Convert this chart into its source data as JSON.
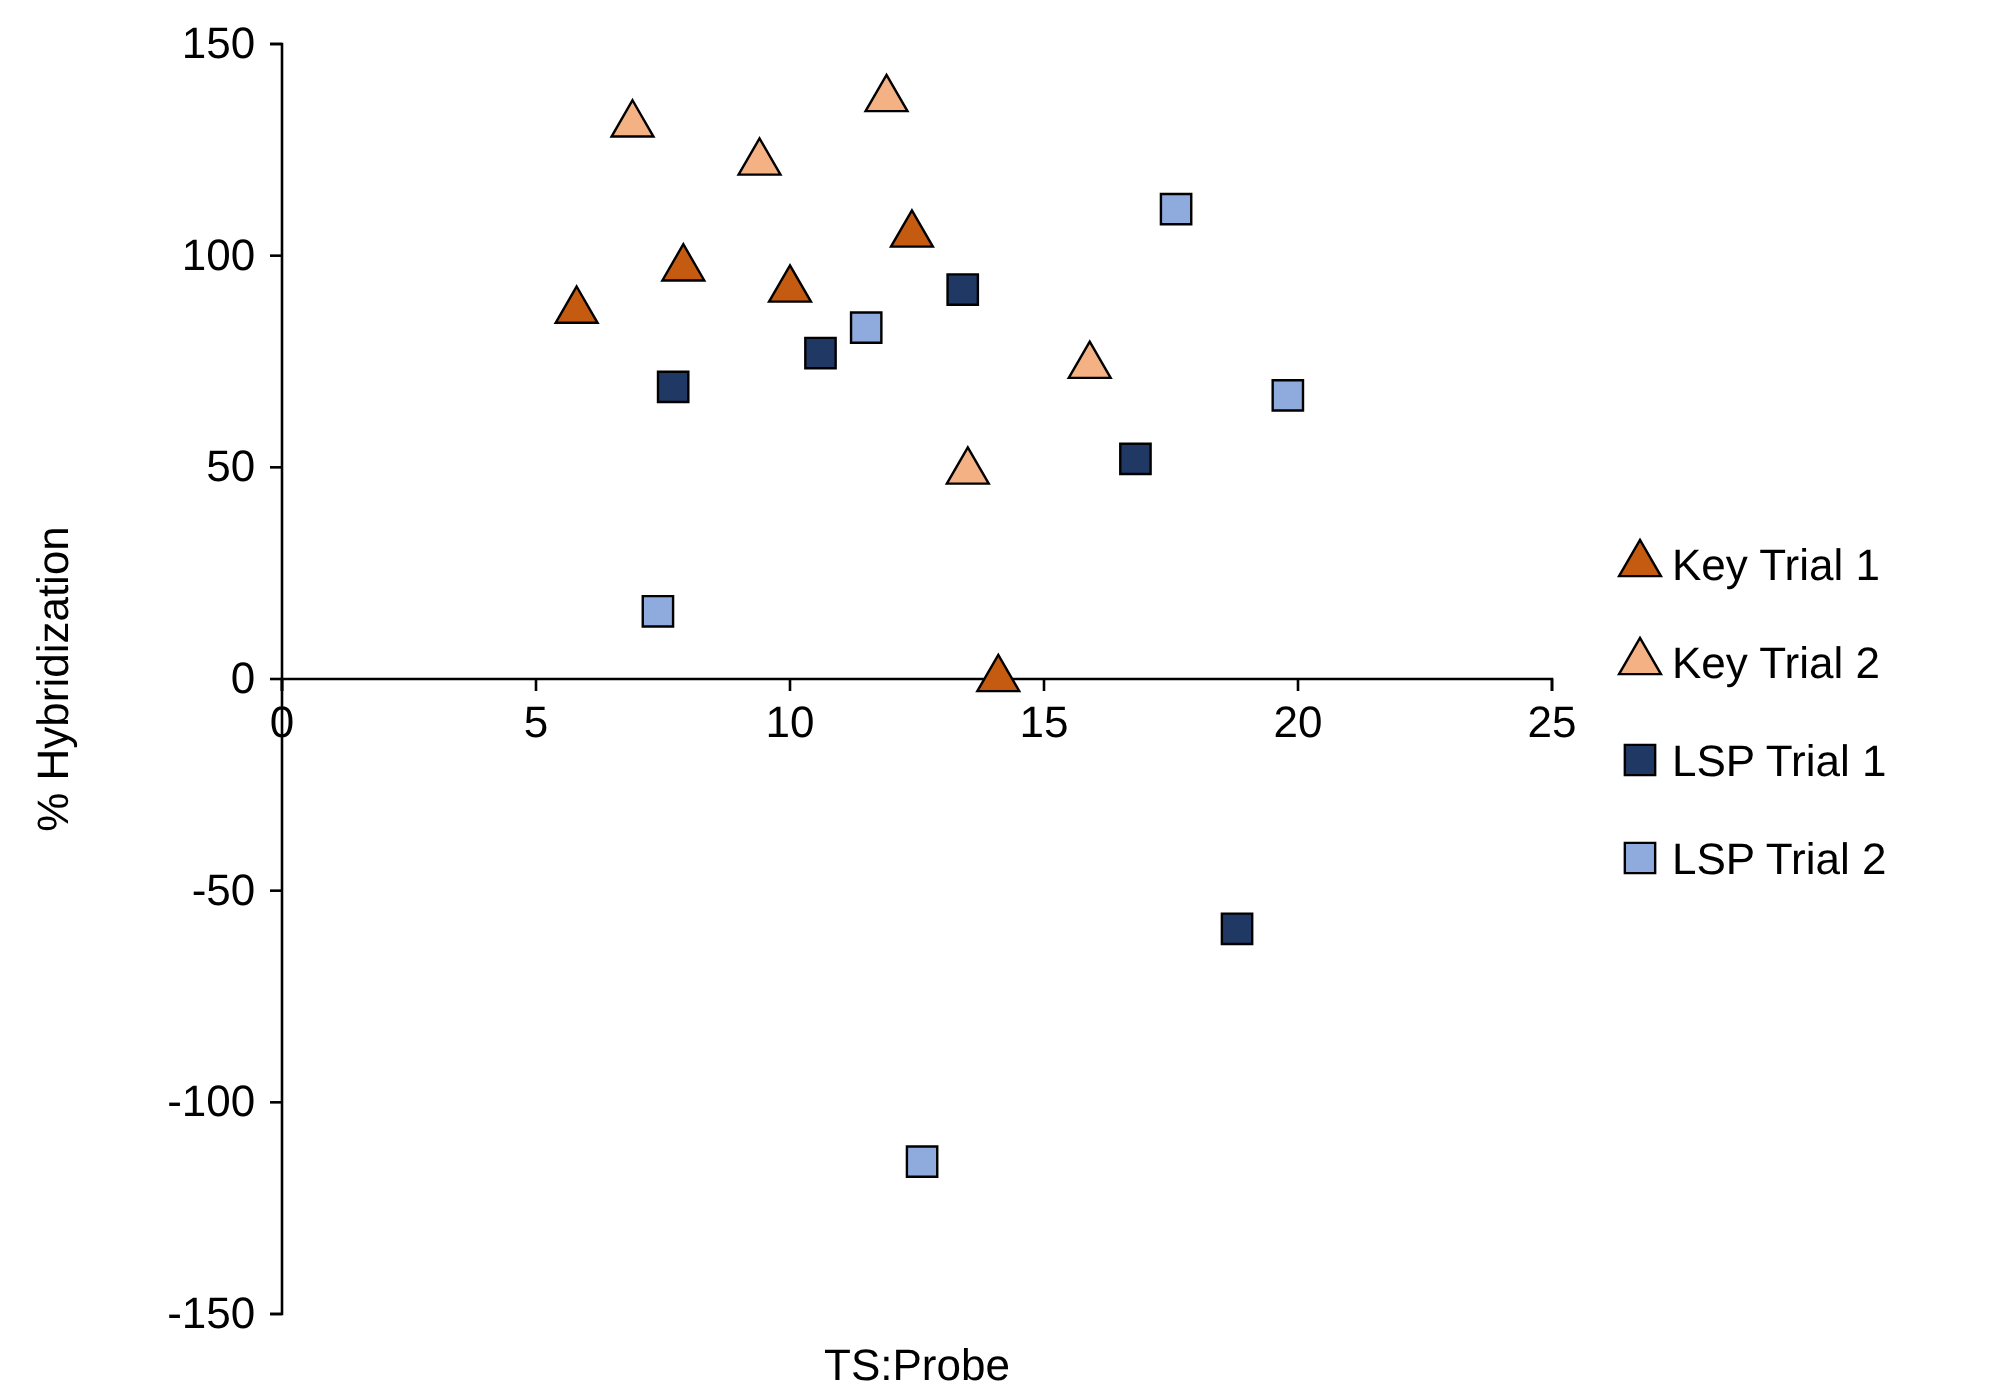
{
  "chart_data": {
    "type": "scatter",
    "xlabel": "TS:Probe",
    "ylabel": "% Hybridization",
    "xlim": [
      0,
      25
    ],
    "xticks": [
      0,
      5,
      10,
      15,
      20,
      25
    ],
    "ylim": [
      -150,
      150
    ],
    "yticks": [
      -150,
      -100,
      -50,
      0,
      50,
      100,
      150
    ],
    "grid": false,
    "legend": "right",
    "series": [
      {
        "name": "Key Trial 1",
        "color": "#c55a11",
        "marker": "triangle",
        "x": [
          5.8,
          7.9,
          10.0,
          12.4,
          14.1
        ],
        "values": [
          87,
          97,
          92,
          105,
          0
        ]
      },
      {
        "name": "Key Trial 2",
        "color": "#f4b183",
        "marker": "triangle",
        "x": [
          6.9,
          9.4,
          11.9,
          13.5,
          15.9
        ],
        "values": [
          131,
          122,
          137,
          49,
          74
        ]
      },
      {
        "name": "LSP Trial 1",
        "color": "#1f3864",
        "marker": "square",
        "x": [
          7.7,
          10.6,
          13.4,
          16.8,
          18.8
        ],
        "values": [
          69,
          77,
          92,
          52,
          -59
        ]
      },
      {
        "name": "LSP Trial 2",
        "color": "#8faadc",
        "marker": "square",
        "x": [
          7.4,
          11.5,
          17.6,
          19.8,
          12.6
        ],
        "values": [
          16,
          83,
          111,
          67,
          -114
        ]
      }
    ]
  }
}
